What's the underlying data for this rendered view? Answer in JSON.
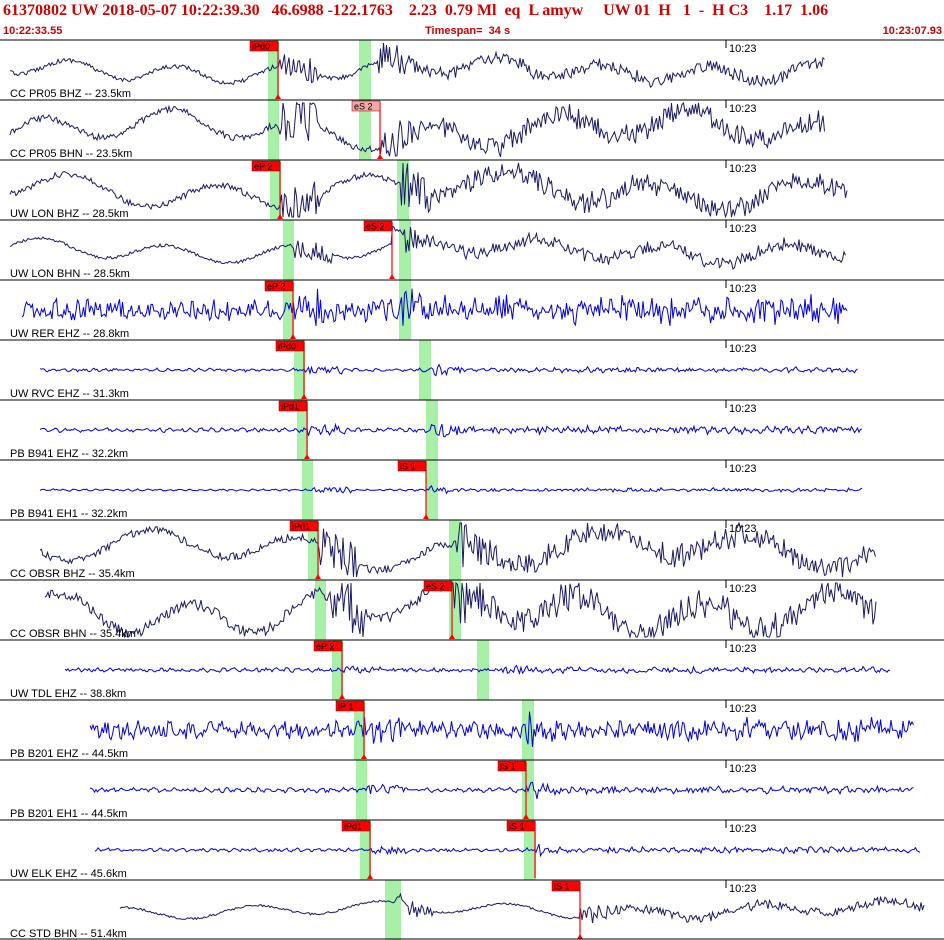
{
  "header": {
    "event_line": "61370802 UW 2018-05-07 10:22:39.30   46.6988 -122.1763    2.23  0.79 Ml  eq  L amyw     UW 01  H   1  -  H C3    1.17  1.06",
    "start_time": "10:22:33.55",
    "timespan": "Timespan=  34 s",
    "end_time": "10:23:07.93"
  },
  "colors": {
    "header_text": "#d00000",
    "pick_flag": "#ff0000",
    "pick_flag_light": "#f4a6a6",
    "s_window": "#a8f0a8",
    "trace_blue": "#0000e0",
    "trace_dark": "#1a1a66",
    "divider": "#000000"
  },
  "tick_label": "10:23",
  "traces": [
    {
      "label": "CC PR05 BHZ -- 23.5km",
      "color": "dark",
      "pick": {
        "text": "iPd0",
        "light": false
      },
      "s_pick": null
    },
    {
      "label": "CC PR05 BHN -- 23.5km",
      "color": "dark",
      "pick": {
        "text": "eS 2",
        "light": true
      },
      "s_pick": null
    },
    {
      "label": "UW LON BHZ -- 28.5km",
      "color": "dark",
      "pick": {
        "text": "eP 2",
        "light": false
      },
      "s_pick": null
    },
    {
      "label": "UW LON BHN -- 28.5km",
      "color": "dark",
      "pick": {
        "text": "eS 2",
        "light": false
      },
      "s_pick": null
    },
    {
      "label": "UW RER EHZ -- 28.8km",
      "color": "blue",
      "pick": {
        "text": "eP 2",
        "light": false
      },
      "s_pick": null
    },
    {
      "label": "UW RVC EHZ -- 31.3km",
      "color": "blue",
      "pick": {
        "text": "iPd0",
        "light": false
      },
      "s_pick": null
    },
    {
      "label": "PB B941 EHZ -- 32.2km",
      "color": "blue",
      "pick": {
        "text": "iPd1",
        "light": false
      },
      "s_pick": null
    },
    {
      "label": "PB B941 EH1 -- 32.2km",
      "color": "blue",
      "pick": {
        "text": "iS 1",
        "light": false
      },
      "s_pick": null
    },
    {
      "label": "CC OBSR BHZ -- 35.4km",
      "color": "dark",
      "pick": {
        "text": "iPd1",
        "light": false
      },
      "s_pick": null
    },
    {
      "label": "CC OBSR BHN -- 35.4km",
      "color": "dark",
      "pick": {
        "text": "eS 2",
        "light": false
      },
      "s_pick": null
    },
    {
      "label": "UW TDL EHZ -- 38.8km",
      "color": "blue",
      "pick": {
        "text": "eP 2",
        "light": false
      },
      "s_pick": null
    },
    {
      "label": "PB B201 EHZ -- 44.5km",
      "color": "blue",
      "pick": {
        "text": "iP 1",
        "light": false
      },
      "s_pick": null
    },
    {
      "label": "PB B201 EH1 -- 44.5km",
      "color": "blue",
      "pick": {
        "text": "iS 1",
        "light": false
      },
      "s_pick": null
    },
    {
      "label": "UW ELK EHZ -- 45.6km",
      "color": "blue",
      "pick": {
        "text": "iPd1",
        "light": false
      },
      "s_pick": {
        "text": "iS 1"
      }
    },
    {
      "label": "CC STD BHN -- 51.4km",
      "color": "dark",
      "pick": {
        "text": "iS 1",
        "light": false
      },
      "s_pick": null
    }
  ]
}
